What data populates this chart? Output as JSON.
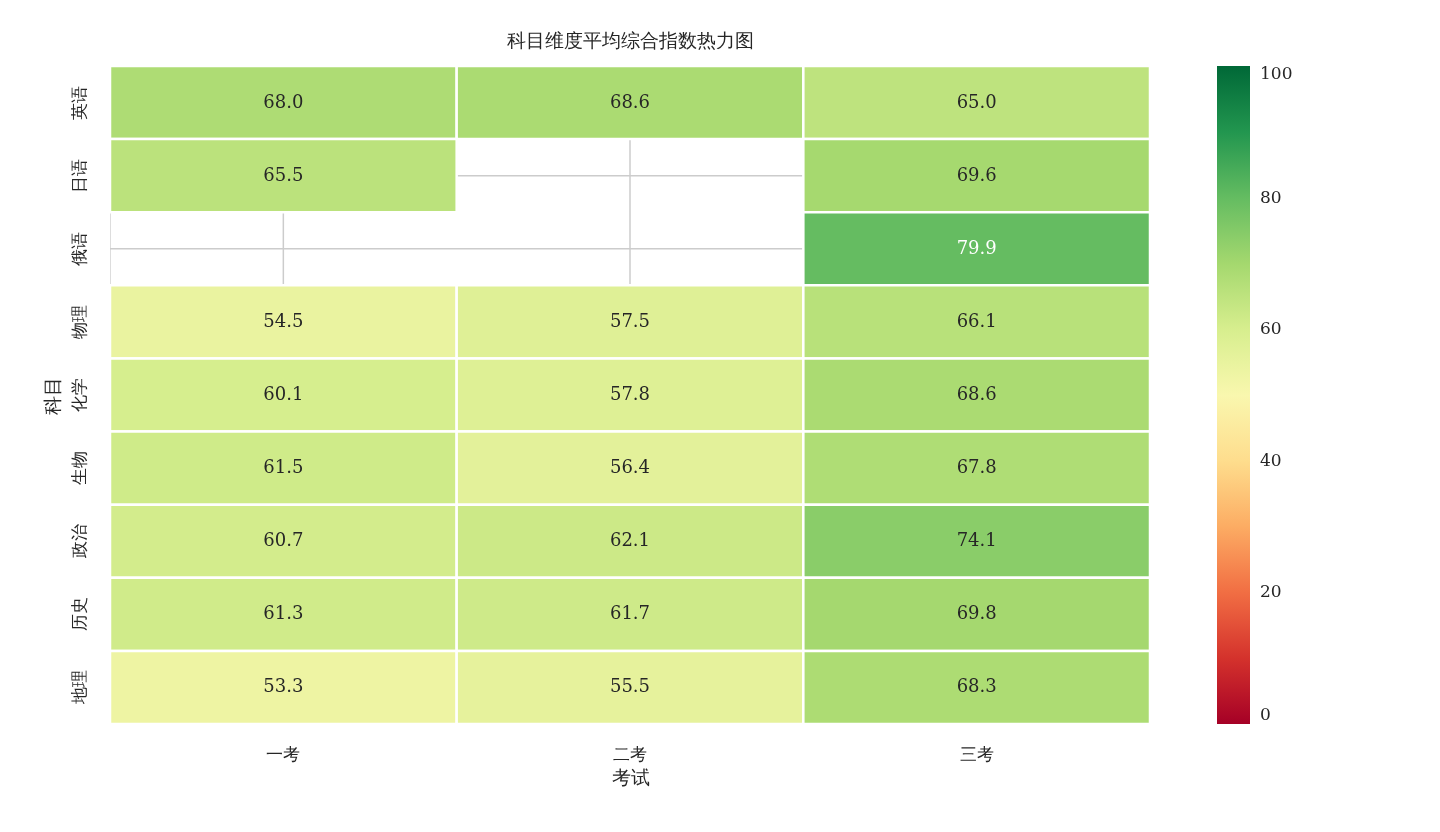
{
  "chart_data": {
    "type": "heatmap",
    "title": "科目维度平均综合指数热力图",
    "xlabel": "考试",
    "ylabel": "科目",
    "categories": [
      "一考",
      "二考",
      "三考"
    ],
    "y_categories": [
      "英语",
      "日语",
      "俄语",
      "物理",
      "化学",
      "生物",
      "政治",
      "历史",
      "地理"
    ],
    "cells": [
      [
        68.0,
        68.6,
        65.0
      ],
      [
        65.5,
        null,
        69.6
      ],
      [
        null,
        null,
        79.9
      ],
      [
        54.5,
        57.5,
        66.1
      ],
      [
        60.1,
        57.8,
        68.6
      ],
      [
        61.5,
        56.4,
        67.8
      ],
      [
        60.7,
        62.1,
        74.1
      ],
      [
        61.3,
        61.7,
        69.8
      ],
      [
        53.3,
        55.5,
        68.3
      ]
    ],
    "cell_labels": [
      [
        "68.0",
        "68.6",
        "65.0"
      ],
      [
        "65.5",
        null,
        "69.6"
      ],
      [
        null,
        null,
        "79.9"
      ],
      [
        "54.5",
        "57.5",
        "66.1"
      ],
      [
        "60.1",
        "57.8",
        "68.6"
      ],
      [
        "61.5",
        "56.4",
        "67.8"
      ],
      [
        "60.7",
        "62.1",
        "74.1"
      ],
      [
        "61.3",
        "61.7",
        "69.8"
      ],
      [
        "53.3",
        "55.5",
        "68.3"
      ]
    ],
    "clim": [
      0,
      100
    ],
    "cticks": [
      0,
      20,
      40,
      60,
      80,
      100
    ],
    "grid": true
  }
}
